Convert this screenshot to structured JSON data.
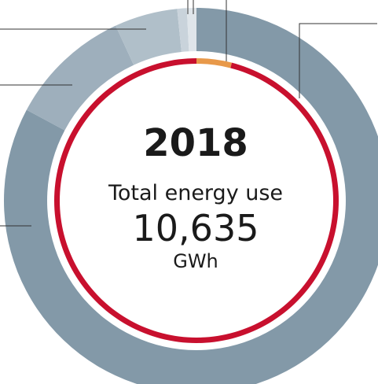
{
  "chart_data": {
    "type": "donut",
    "title": "2018",
    "subtitle": "Total energy use",
    "center_value": {
      "value": 10635,
      "label": "10,635"
    },
    "unit": "GWh",
    "series": [
      {
        "values": [
          82.8,
          10.3,
          5.3,
          0.8,
          0.8
        ],
        "colors": [
          "#8399a8",
          "#9eafbc",
          "#b0bfc9",
          "#c9d3db",
          "#dfe5ea"
        ]
      },
      {
        "values": [
          4,
          96
        ],
        "colors": [
          "#e8994a",
          "#c8102e"
        ]
      }
    ]
  }
}
